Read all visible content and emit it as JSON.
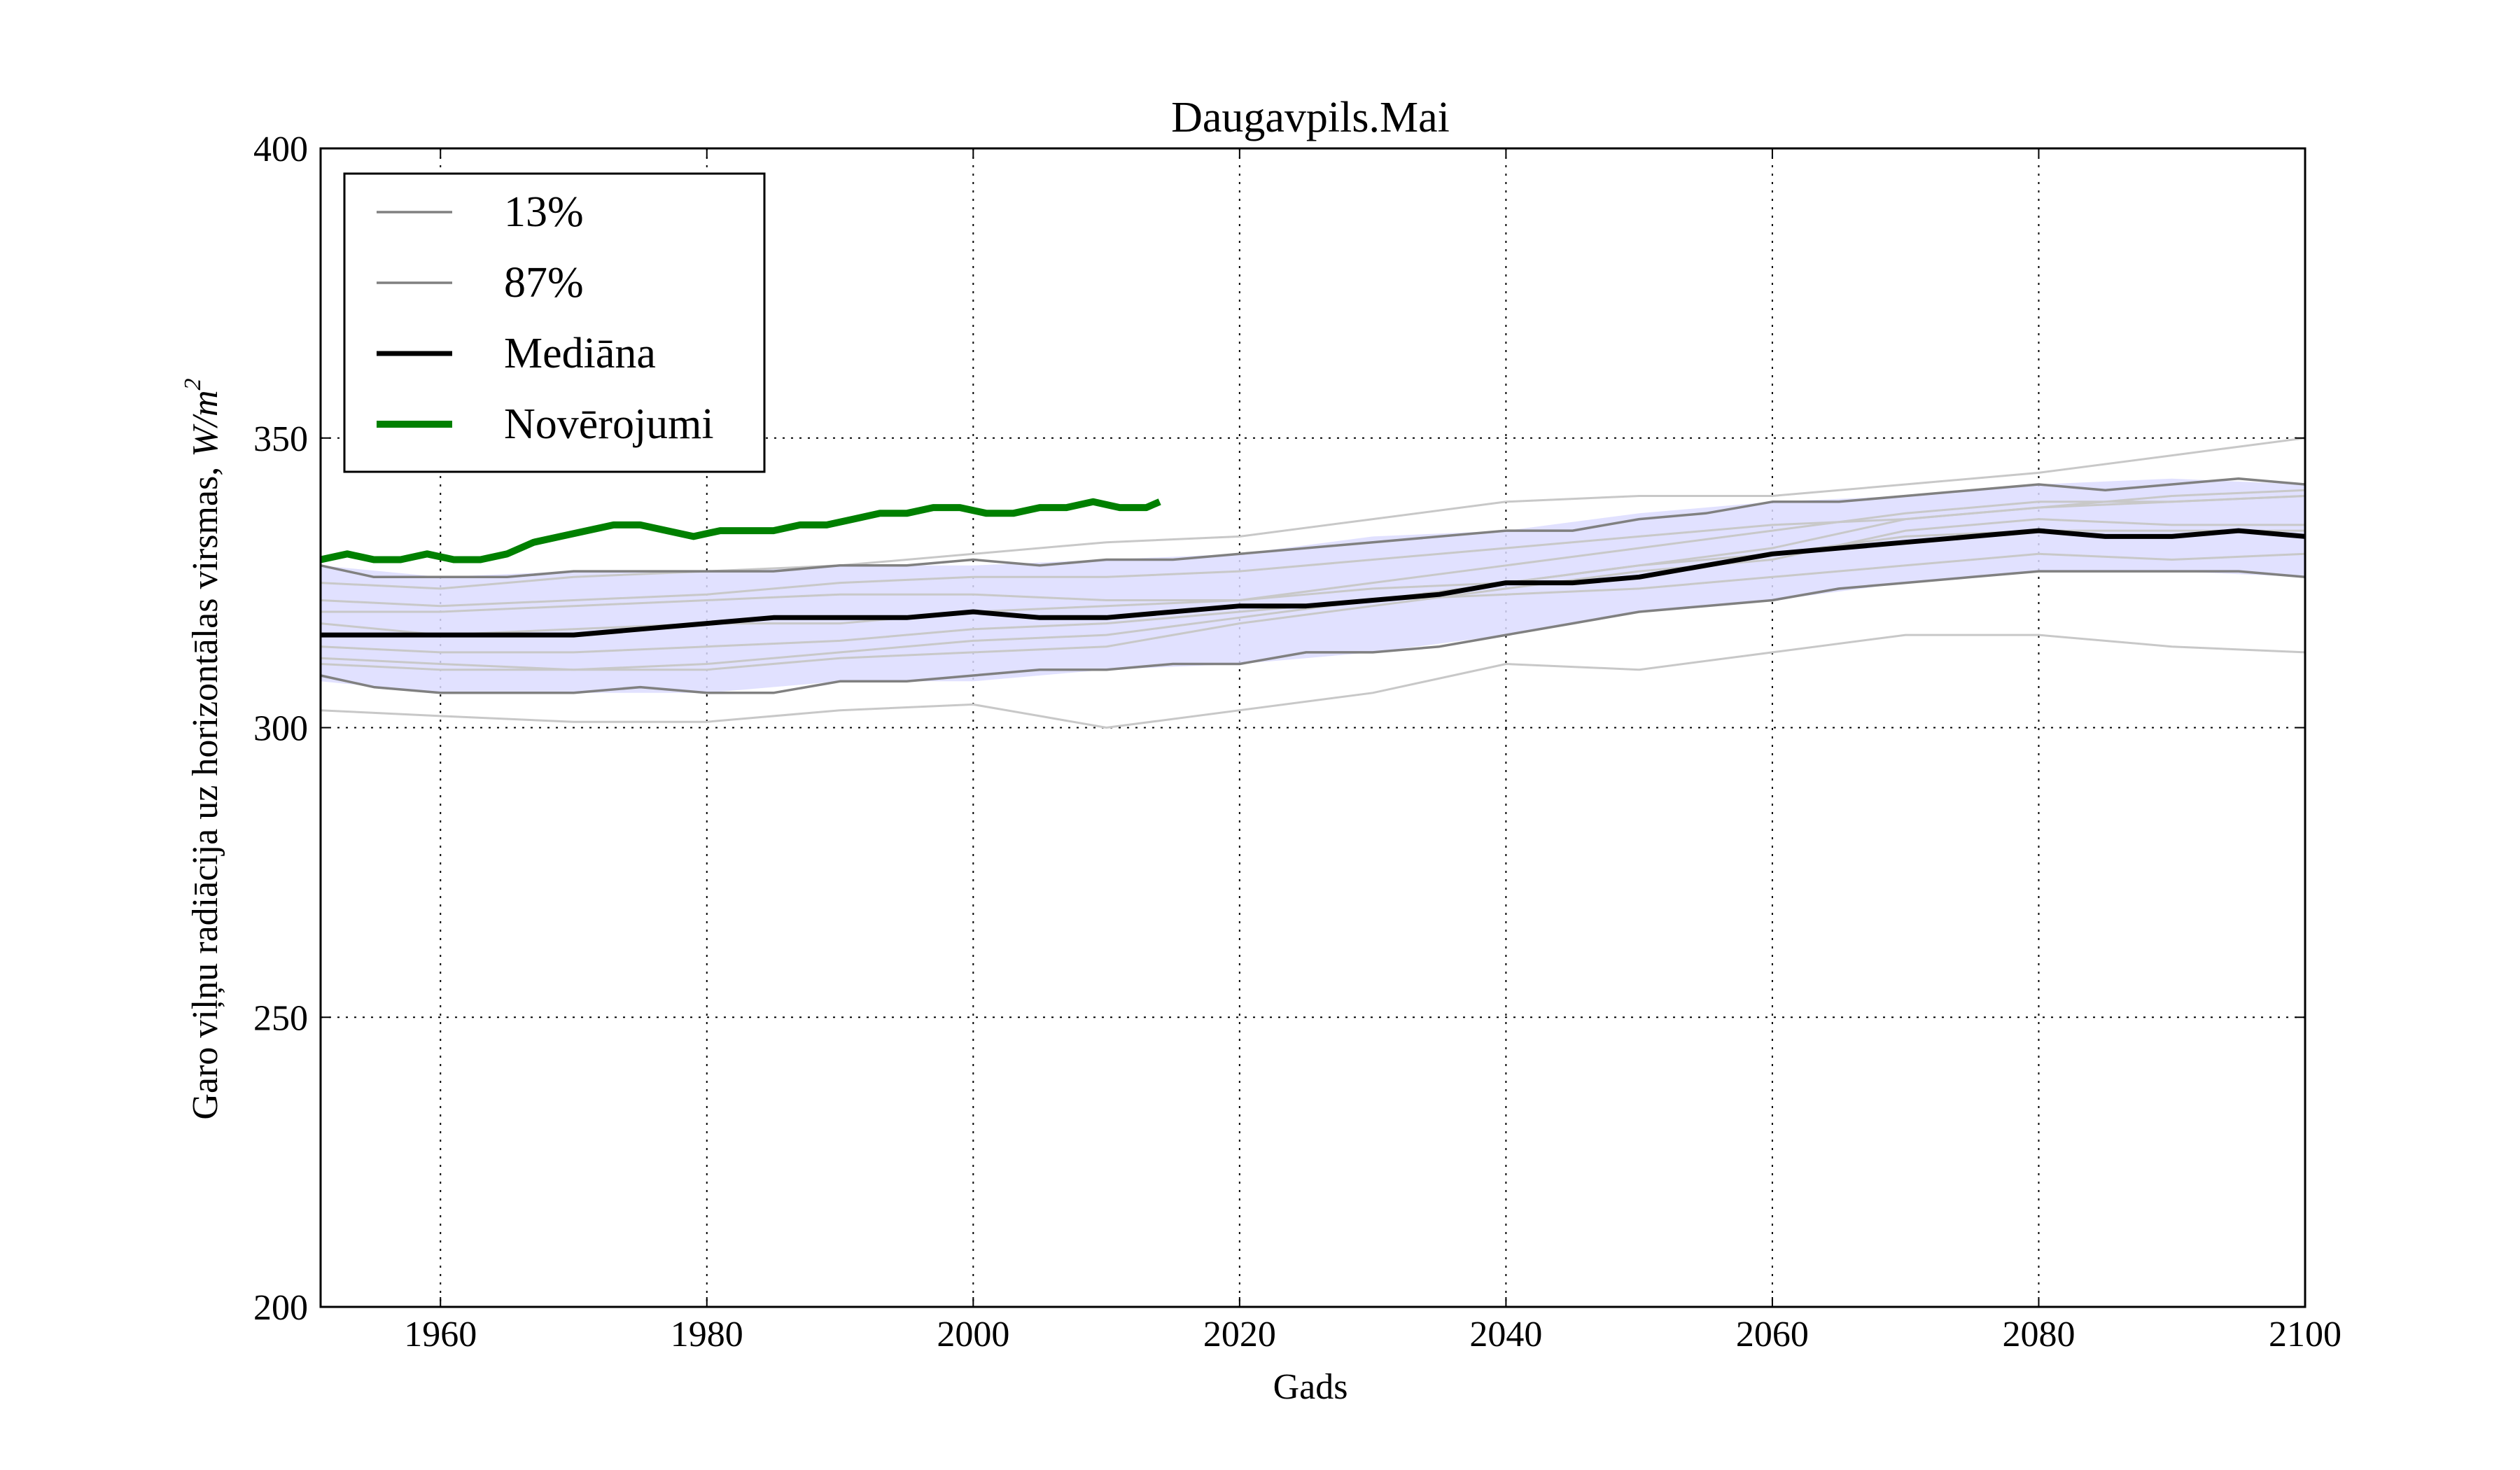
{
  "chart_data": {
    "type": "line",
    "title": "Daugavpils.Mai",
    "xlabel": "Gads",
    "ylabel": "Garo viļņu radiācija uz horizontālas virsmas, W/m²",
    "ylabel_text": "Garo viļņu radiācija uz horizontālas virsmas,",
    "ylabel_unit": "W/m",
    "ylabel_unit_exp": "2",
    "xlim": [
      1951,
      2100
    ],
    "ylim": [
      200,
      400
    ],
    "xticks": [
      1960,
      1980,
      2000,
      2020,
      2040,
      2060,
      2080,
      2100
    ],
    "yticks": [
      200,
      250,
      300,
      350,
      400
    ],
    "grid": true,
    "legend_position": "upper-left",
    "legend": [
      {
        "label": "13%",
        "color": "#808080",
        "style": "thin"
      },
      {
        "label": "87%",
        "color": "#808080",
        "style": "thin"
      },
      {
        "label": "Mediāna",
        "color": "#000000",
        "style": "thick"
      },
      {
        "label": "Novērojumi",
        "color": "#008000",
        "style": "thicker"
      }
    ],
    "band": {
      "name": "13%-87%",
      "color": "#dcdcff",
      "x": [
        1951,
        1960,
        1970,
        1980,
        1990,
        2000,
        2010,
        2020,
        2030,
        2040,
        2050,
        2060,
        2070,
        2080,
        2090,
        2100
      ],
      "lower": [
        308,
        306,
        306,
        306,
        308,
        308,
        310,
        311,
        313,
        316,
        320,
        322,
        325,
        327,
        327,
        326
      ],
      "upper": [
        328,
        326,
        327,
        327,
        328,
        328,
        329,
        330,
        333,
        334,
        337,
        339,
        340,
        342,
        343,
        342
      ]
    },
    "series": [
      {
        "name": "13%",
        "color": "#808080",
        "x": [
          1951,
          1955,
          1960,
          1965,
          1970,
          1975,
          1980,
          1985,
          1990,
          1995,
          2000,
          2005,
          2010,
          2015,
          2020,
          2025,
          2030,
          2035,
          2040,
          2045,
          2050,
          2055,
          2060,
          2065,
          2070,
          2075,
          2080,
          2085,
          2090,
          2095,
          2100
        ],
        "values": [
          309,
          307,
          306,
          306,
          306,
          307,
          306,
          306,
          308,
          308,
          309,
          310,
          310,
          311,
          311,
          313,
          313,
          314,
          316,
          318,
          320,
          321,
          322,
          324,
          325,
          326,
          327,
          327,
          327,
          327,
          326
        ]
      },
      {
        "name": "87%",
        "color": "#808080",
        "x": [
          1951,
          1955,
          1960,
          1965,
          1970,
          1975,
          1980,
          1985,
          1990,
          1995,
          2000,
          2005,
          2010,
          2015,
          2020,
          2025,
          2030,
          2035,
          2040,
          2045,
          2050,
          2055,
          2060,
          2065,
          2070,
          2075,
          2080,
          2085,
          2090,
          2095,
          2100
        ],
        "values": [
          328,
          326,
          326,
          326,
          327,
          327,
          327,
          327,
          328,
          328,
          329,
          328,
          329,
          329,
          330,
          331,
          332,
          333,
          334,
          334,
          336,
          337,
          339,
          339,
          340,
          341,
          342,
          341,
          342,
          343,
          342
        ]
      },
      {
        "name": "Mediāna",
        "color": "#000000",
        "x": [
          1951,
          1955,
          1960,
          1965,
          1970,
          1975,
          1980,
          1985,
          1990,
          1995,
          2000,
          2005,
          2010,
          2015,
          2020,
          2025,
          2030,
          2035,
          2040,
          2045,
          2050,
          2055,
          2060,
          2065,
          2070,
          2075,
          2080,
          2085,
          2090,
          2095,
          2100
        ],
        "values": [
          316,
          316,
          316,
          316,
          316,
          317,
          318,
          319,
          319,
          319,
          320,
          319,
          319,
          320,
          321,
          321,
          322,
          323,
          325,
          325,
          326,
          328,
          330,
          331,
          332,
          333,
          334,
          333,
          333,
          334,
          333
        ]
      },
      {
        "name": "Novērojumi",
        "color": "#008000",
        "x": [
          1951,
          1953,
          1955,
          1957,
          1959,
          1961,
          1963,
          1965,
          1967,
          1969,
          1971,
          1973,
          1975,
          1977,
          1979,
          1981,
          1983,
          1985,
          1987,
          1989,
          1991,
          1993,
          1995,
          1997,
          1999,
          2001,
          2003,
          2005,
          2007,
          2009,
          2011,
          2013,
          2014
        ],
        "values": [
          329,
          330,
          329,
          329,
          330,
          329,
          329,
          330,
          332,
          333,
          334,
          335,
          335,
          334,
          333,
          334,
          334,
          334,
          335,
          335,
          336,
          337,
          337,
          338,
          338,
          337,
          337,
          338,
          338,
          339,
          338,
          338,
          339
        ]
      }
    ],
    "ensemble_members": [
      {
        "color": "#c8c8c8",
        "x": [
          1951,
          1960,
          1970,
          1980,
          1990,
          2000,
          2005,
          2010,
          2020,
          2030,
          2040,
          2050,
          2060,
          2070,
          2080,
          2090,
          2100
        ],
        "values": [
          303,
          302,
          301,
          301,
          303,
          304,
          302,
          300,
          303,
          306,
          311,
          310,
          313,
          316,
          316,
          314,
          313
        ]
      },
      {
        "color": "#c8c8c8",
        "x": [
          1951,
          1960,
          1970,
          1980,
          1990,
          2000,
          2010,
          2020,
          2030,
          2040,
          2050,
          2060,
          2070,
          2080,
          2090,
          2100
        ],
        "values": [
          312,
          311,
          310,
          310,
          312,
          313,
          314,
          318,
          321,
          324,
          327,
          329,
          334,
          336,
          335,
          335
        ]
      },
      {
        "color": "#c8c8c8",
        "x": [
          1951,
          1960,
          1970,
          1980,
          1990,
          2000,
          2010,
          2020,
          2030,
          2040,
          2050,
          2060,
          2070,
          2080,
          2090,
          2100
        ],
        "values": [
          314,
          313,
          313,
          314,
          315,
          317,
          318,
          320,
          322,
          325,
          328,
          330,
          333,
          334,
          334,
          334
        ]
      },
      {
        "color": "#c8c8c8",
        "x": [
          1951,
          1960,
          1970,
          1980,
          1990,
          2000,
          2010,
          2020,
          2030,
          2040,
          2050,
          2060,
          2070,
          2080,
          2090,
          2100
        ],
        "values": [
          320,
          320,
          321,
          322,
          323,
          323,
          322,
          322,
          324,
          325,
          328,
          331,
          336,
          338,
          339,
          340
        ]
      },
      {
        "color": "#c8c8c8",
        "x": [
          1951,
          1960,
          1970,
          1980,
          1990,
          2000,
          2010,
          2020,
          2030,
          2040,
          2050,
          2060,
          2070,
          2080,
          2090,
          2100
        ],
        "values": [
          325,
          324,
          326,
          327,
          328,
          330,
          332,
          333,
          336,
          339,
          340,
          340,
          342,
          344,
          347,
          350
        ]
      },
      {
        "color": "#c8c8c8",
        "x": [
          1951,
          1960,
          1970,
          1980,
          1990,
          2000,
          2010,
          2020,
          2030,
          2040,
          2050,
          2060,
          2070,
          2080,
          2090,
          2100
        ],
        "values": [
          311,
          310,
          310,
          311,
          313,
          315,
          316,
          319,
          322,
          323,
          324,
          326,
          328,
          330,
          329,
          330
        ]
      },
      {
        "color": "#c8c8c8",
        "x": [
          1951,
          1960,
          1970,
          1980,
          1990,
          2000,
          2010,
          2020,
          2030,
          2040,
          2050,
          2060,
          2070,
          2080,
          2090,
          2100
        ],
        "values": [
          318,
          316,
          317,
          318,
          318,
          320,
          321,
          322,
          325,
          328,
          331,
          334,
          337,
          339,
          339,
          340
        ]
      },
      {
        "color": "#c8c8c8",
        "x": [
          1951,
          1960,
          1970,
          1980,
          1990,
          2000,
          2010,
          2020,
          2030,
          2040,
          2050,
          2060,
          2070,
          2080,
          2090,
          2100
        ],
        "values": [
          322,
          321,
          322,
          323,
          325,
          326,
          326,
          327,
          329,
          331,
          333,
          335,
          336,
          338,
          340,
          341
        ]
      }
    ]
  }
}
